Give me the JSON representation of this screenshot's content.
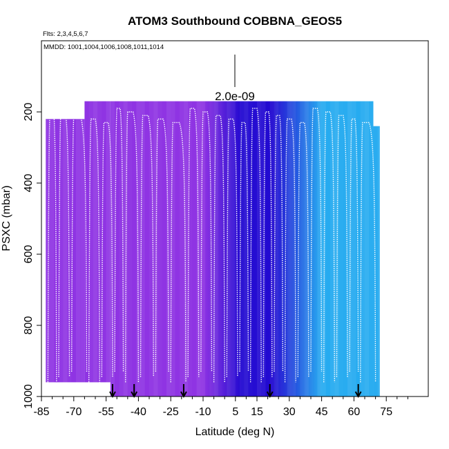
{
  "chart_data": {
    "type": "heatmap",
    "title": "ATOM3 Southbound COBBNA_GEOS5",
    "info_lines": [
      "Flts: 2,3,4,5,6,7",
      "MMDD: 1001,1004,1006,1008,1011,1014"
    ],
    "colorbar_label": "2.0e-09",
    "xlabel": "Latitude (deg N)",
    "ylabel": "PSXC (mbar)",
    "xlim": [
      -85,
      90
    ],
    "ylim": [
      1000,
      0
    ],
    "x_ticks": [
      -85,
      -70,
      -55,
      -40,
      -25,
      -10,
      5,
      15,
      30,
      45,
      60,
      75
    ],
    "x_tick_labels": [
      "-85",
      "-70",
      "-55",
      "-40",
      "-25",
      "-10",
      "5",
      "15",
      "30",
      "45",
      "60",
      "75"
    ],
    "y_ticks": [
      200,
      400,
      600,
      800,
      1000
    ],
    "y_tick_labels": [
      "200",
      "400",
      "600",
      "800",
      "1000"
    ],
    "grid": false,
    "curtain": {
      "lat_range": [
        -83,
        72
      ],
      "colors": {
        "south_violet": "#8a2be2",
        "tropics_dark_blue": "#1a00d0",
        "north_light_blue": "#1ea8f0"
      },
      "blocks": [
        {
          "lat": [
            -83,
            -65
          ],
          "p_top": 220,
          "p_bottom": 960
        },
        {
          "lat": [
            -65,
            -53
          ],
          "p_top": 170,
          "p_bottom": 960
        },
        {
          "lat": [
            -53,
            69
          ],
          "p_top": 170,
          "p_bottom": 1000
        },
        {
          "lat": [
            69,
            72
          ],
          "p_top": 240,
          "p_bottom": 1000
        }
      ]
    },
    "profile_lat_segments": [
      [
        -82,
        -78
      ],
      [
        -77,
        -72
      ],
      [
        -71,
        -64
      ],
      [
        -63,
        -58
      ],
      [
        -57,
        -52
      ],
      [
        -51,
        -47
      ],
      [
        -46,
        -40
      ],
      [
        -39,
        -33
      ],
      [
        -32,
        -26
      ],
      [
        -25,
        -18
      ],
      [
        -17,
        -12
      ],
      [
        -11,
        -6
      ],
      [
        -5,
        0
      ],
      [
        1,
        6
      ],
      [
        7,
        11
      ],
      [
        12,
        17
      ],
      [
        18,
        22
      ],
      [
        23,
        27
      ],
      [
        28,
        33
      ],
      [
        34,
        39
      ],
      [
        40,
        45
      ],
      [
        46,
        51
      ],
      [
        52,
        57
      ],
      [
        58,
        62
      ],
      [
        63,
        70
      ]
    ],
    "profile_p_range": [
      190,
      960
    ],
    "series": [
      {
        "marker": "down-arrow",
        "x": [
          -52,
          -42,
          -19,
          21,
          62
        ]
      }
    ]
  }
}
